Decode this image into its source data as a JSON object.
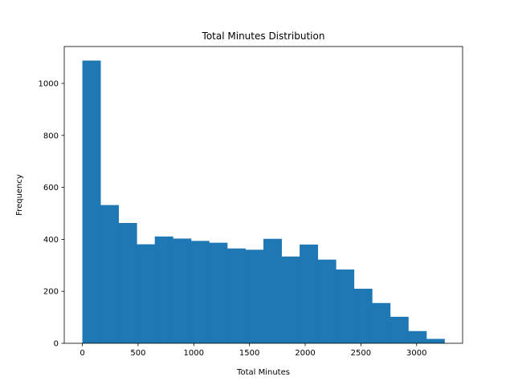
{
  "chart_data": {
    "type": "bar",
    "subtype": "histogram",
    "title": "Total Minutes Distribution",
    "xlabel": "Total Minutes",
    "ylabel": "Frequency",
    "bin_start": 0,
    "bin_width": 162.5,
    "bins": 20,
    "values": [
      1088,
      532,
      463,
      381,
      411,
      403,
      394,
      387,
      365,
      360,
      402,
      334,
      380,
      322,
      284,
      210,
      155,
      102,
      47,
      17
    ],
    "xlim": [
      -162.5,
      3412.5
    ],
    "ylim": [
      0,
      1142
    ],
    "x_ticks": [
      0,
      500,
      1000,
      1500,
      2000,
      2500,
      3000
    ],
    "y_ticks": [
      0,
      200,
      400,
      600,
      800,
      1000
    ],
    "bar_color": "#1f77b4",
    "grid": false,
    "legend": "none"
  }
}
